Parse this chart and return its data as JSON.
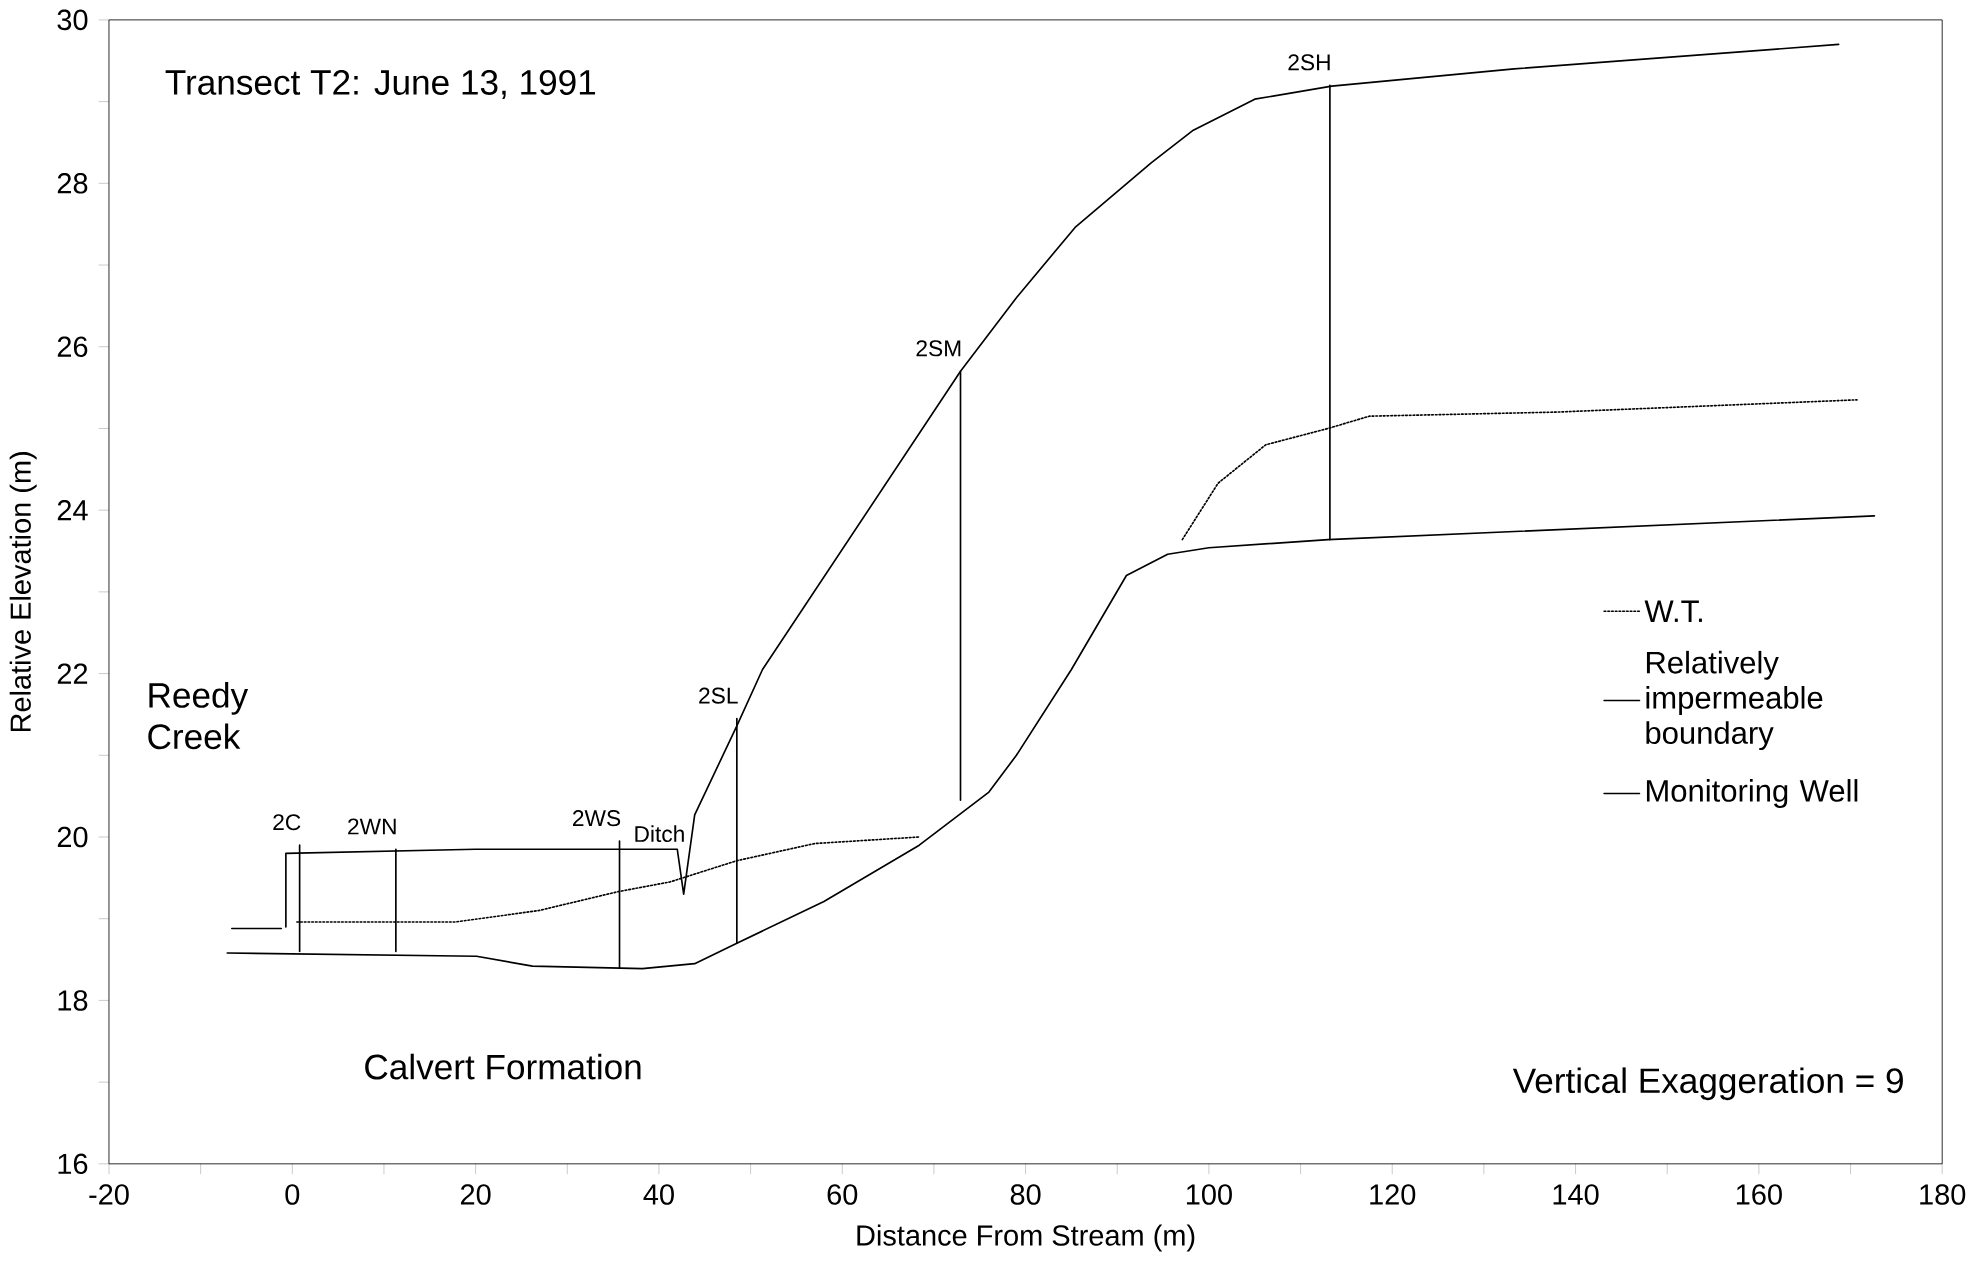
{
  "chart_data": {
    "type": "line",
    "title": "Transect T2:  June 13, 1991",
    "xlabel": "Distance From Stream (m)",
    "ylabel": "Relative Elevation (m)",
    "xlim": [
      -20,
      180
    ],
    "ylim": [
      16,
      30
    ],
    "xticks": [
      -20,
      {
        "value": -10,
        "label": null
      },
      0,
      {
        "value": 10,
        "label": null
      },
      20,
      {
        "value": 30,
        "label": null
      },
      40,
      {
        "value": 50,
        "label": null
      },
      60,
      {
        "value": 70,
        "label": null
      },
      80,
      {
        "value": 90,
        "label": null
      },
      100,
      {
        "value": 110,
        "label": null
      },
      120,
      {
        "value": 130,
        "label": null
      },
      140,
      {
        "value": 150,
        "label": null
      },
      160,
      {
        "value": 170,
        "label": null
      },
      180
    ],
    "yticks": [
      16,
      {
        "value": 17,
        "label": null
      },
      18,
      {
        "value": 19,
        "label": null
      },
      20,
      {
        "value": 21,
        "label": null
      },
      22,
      {
        "value": 23,
        "label": null
      },
      24,
      {
        "value": 25,
        "label": null
      },
      26,
      {
        "value": 27,
        "label": null
      },
      28,
      {
        "value": 29,
        "label": null
      },
      30
    ],
    "marker": "none",
    "legend": "right",
    "series": [
      {
        "color": "#000000",
        "x": [
          -0.7,
          -0.7,
          20,
          41.2,
          42,
          42.7,
          43.9,
          48.5,
          51.3,
          72.9,
          79,
          85.4,
          93.7,
          98.3,
          105,
          113.4,
          133.3,
          162.8,
          168.7
        ],
        "values": [
          18.9,
          19.8,
          19.85,
          19.85,
          19.85,
          19.3,
          20.27,
          21.36,
          22.05,
          25.7,
          26.6,
          27.46,
          28.25,
          28.65,
          29.03,
          29.19,
          29.4,
          29.65,
          29.7
        ]
      },
      {
        "name": "W.T.",
        "color": "#000000",
        "line_style": "dotted",
        "x": [
          0.5,
          17.8,
          26.9,
          35.5,
          41.2,
          48.5,
          57,
          68.4,
          82,
          97.1,
          101,
          106.2,
          113,
          117.5,
          137.9,
          170.7
        ],
        "values": [
          18.96,
          18.96,
          19.1,
          19.33,
          19.45,
          19.71,
          19.92,
          20.0,
          null,
          23.64,
          24.33,
          24.8,
          25.0,
          25.15,
          25.2,
          25.35
        ]
      },
      {
        "name": "Relatively impermeable boundary",
        "color": "#000000",
        "x": [
          -7.1,
          20.1,
          26.2,
          38.2,
          43.9,
          48.5,
          58,
          68.4,
          76,
          79,
          85,
          91,
          95.5,
          100,
          113,
          172.6
        ],
        "values": [
          18.58,
          18.54,
          18.42,
          18.39,
          18.45,
          18.7,
          19.21,
          19.9,
          20.55,
          21.0,
          22.05,
          23.2,
          23.46,
          23.54,
          23.64,
          23.93
        ]
      },
      {
        "name": "Monitoring Well",
        "color": "#000000",
        "x": [
          0.8,
          0.8,
          null,
          11.3,
          11.3,
          null,
          35.7,
          35.7,
          null,
          48.5,
          48.5,
          null,
          72.9,
          72.9,
          null,
          113.2,
          113.2
        ],
        "values": [
          19.9,
          18.6,
          null,
          19.85,
          18.6,
          null,
          19.95,
          18.4,
          null,
          21.45,
          18.7,
          null,
          25.7,
          20.45,
          null,
          29.2,
          23.64
        ]
      },
      {
        "color": "#000000",
        "x": [
          -6.6,
          -1.2
        ],
        "values": [
          18.88,
          18.88
        ]
      }
    ],
    "annotations": [
      {
        "text": "2C",
        "x": 0.8,
        "y": 19.9
      },
      {
        "text": "2WN",
        "x": 11.3,
        "y": 19.85
      },
      {
        "text": "2WS",
        "x": 35.7,
        "y": 19.95
      },
      {
        "text": "Ditch",
        "x": 42.7,
        "y": 19.3
      },
      {
        "text": "2SL",
        "x": 48.5,
        "y": 21.45
      },
      {
        "text": "2SM",
        "x": 72.9,
        "y": 25.7
      },
      {
        "text": "2SH",
        "x": 113.2,
        "y": 29.2
      },
      "Reedy Creek",
      "Calvert Formation",
      "Vertical Exaggeration = 9"
    ]
  }
}
